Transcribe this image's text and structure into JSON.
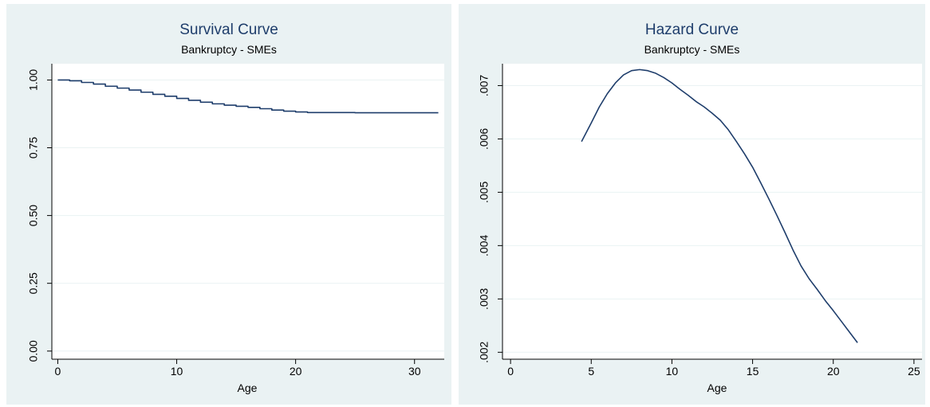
{
  "chart_data": [
    {
      "type": "line",
      "title": "Survival Curve",
      "subtitle": "Bankruptcy - SMEs",
      "xlabel": "Age",
      "ylabel": "",
      "xlim": [
        -0.5,
        32.5
      ],
      "ylim": [
        -0.03,
        1.06
      ],
      "xticks": [
        0,
        10,
        20,
        30
      ],
      "yticks": [
        0,
        0.25,
        0.5,
        0.75,
        1
      ],
      "ytick_labels": [
        "0.00",
        "0.25",
        "0.50",
        "0.75",
        "1.00"
      ],
      "grid": true,
      "line_color": "#1e3d6b",
      "step": true,
      "series": [
        {
          "x": [
            0,
            1,
            2,
            3,
            4,
            5,
            6,
            7,
            8,
            9,
            10,
            11,
            12,
            13,
            14,
            15,
            16,
            17,
            18,
            19,
            20,
            21,
            22,
            23,
            24,
            25,
            26,
            27,
            28,
            29,
            30,
            31,
            32
          ],
          "values": [
            1.0,
            0.997,
            0.991,
            0.985,
            0.977,
            0.97,
            0.963,
            0.955,
            0.947,
            0.94,
            0.932,
            0.925,
            0.918,
            0.912,
            0.907,
            0.903,
            0.899,
            0.894,
            0.889,
            0.885,
            0.882,
            0.88,
            0.88,
            0.88,
            0.88,
            0.879,
            0.879,
            0.879,
            0.879,
            0.879,
            0.879,
            0.879,
            0.879
          ]
        }
      ]
    },
    {
      "type": "line",
      "title": "Hazard Curve",
      "subtitle": "Bankruptcy - SMEs",
      "xlabel": "Age",
      "ylabel": "",
      "xlim": [
        -0.5,
        25.5
      ],
      "ylim": [
        0.00187,
        0.00741
      ],
      "xticks": [
        0,
        5,
        10,
        15,
        20,
        25
      ],
      "yticks": [
        0.002,
        0.003,
        0.004,
        0.005,
        0.006,
        0.007
      ],
      "ytick_labels": [
        ".002",
        ".003",
        ".004",
        ".005",
        ".006",
        ".007"
      ],
      "grid": true,
      "line_color": "#1e3d6b",
      "step": false,
      "series": [
        {
          "x": [
            4.4,
            5.0,
            5.5,
            6.0,
            6.5,
            7.0,
            7.5,
            8.0,
            8.5,
            9.0,
            9.5,
            10.0,
            10.5,
            11.0,
            11.5,
            12.0,
            12.5,
            13.0,
            13.5,
            14.0,
            14.5,
            15.0,
            15.5,
            16.0,
            16.5,
            17.0,
            17.5,
            18.0,
            18.5,
            19.0,
            19.5,
            20.0,
            20.5,
            21.0,
            21.5
          ],
          "values": [
            0.00595,
            0.0063,
            0.0066,
            0.00685,
            0.00705,
            0.0072,
            0.00728,
            0.0073,
            0.00728,
            0.00723,
            0.00715,
            0.00705,
            0.00693,
            0.00682,
            0.0067,
            0.0066,
            0.00648,
            0.00635,
            0.00617,
            0.00595,
            0.00572,
            0.00547,
            0.00518,
            0.00488,
            0.00457,
            0.00425,
            0.00392,
            0.00362,
            0.00338,
            0.00318,
            0.00297,
            0.00278,
            0.00258,
            0.00238,
            0.00218
          ]
        }
      ]
    }
  ]
}
